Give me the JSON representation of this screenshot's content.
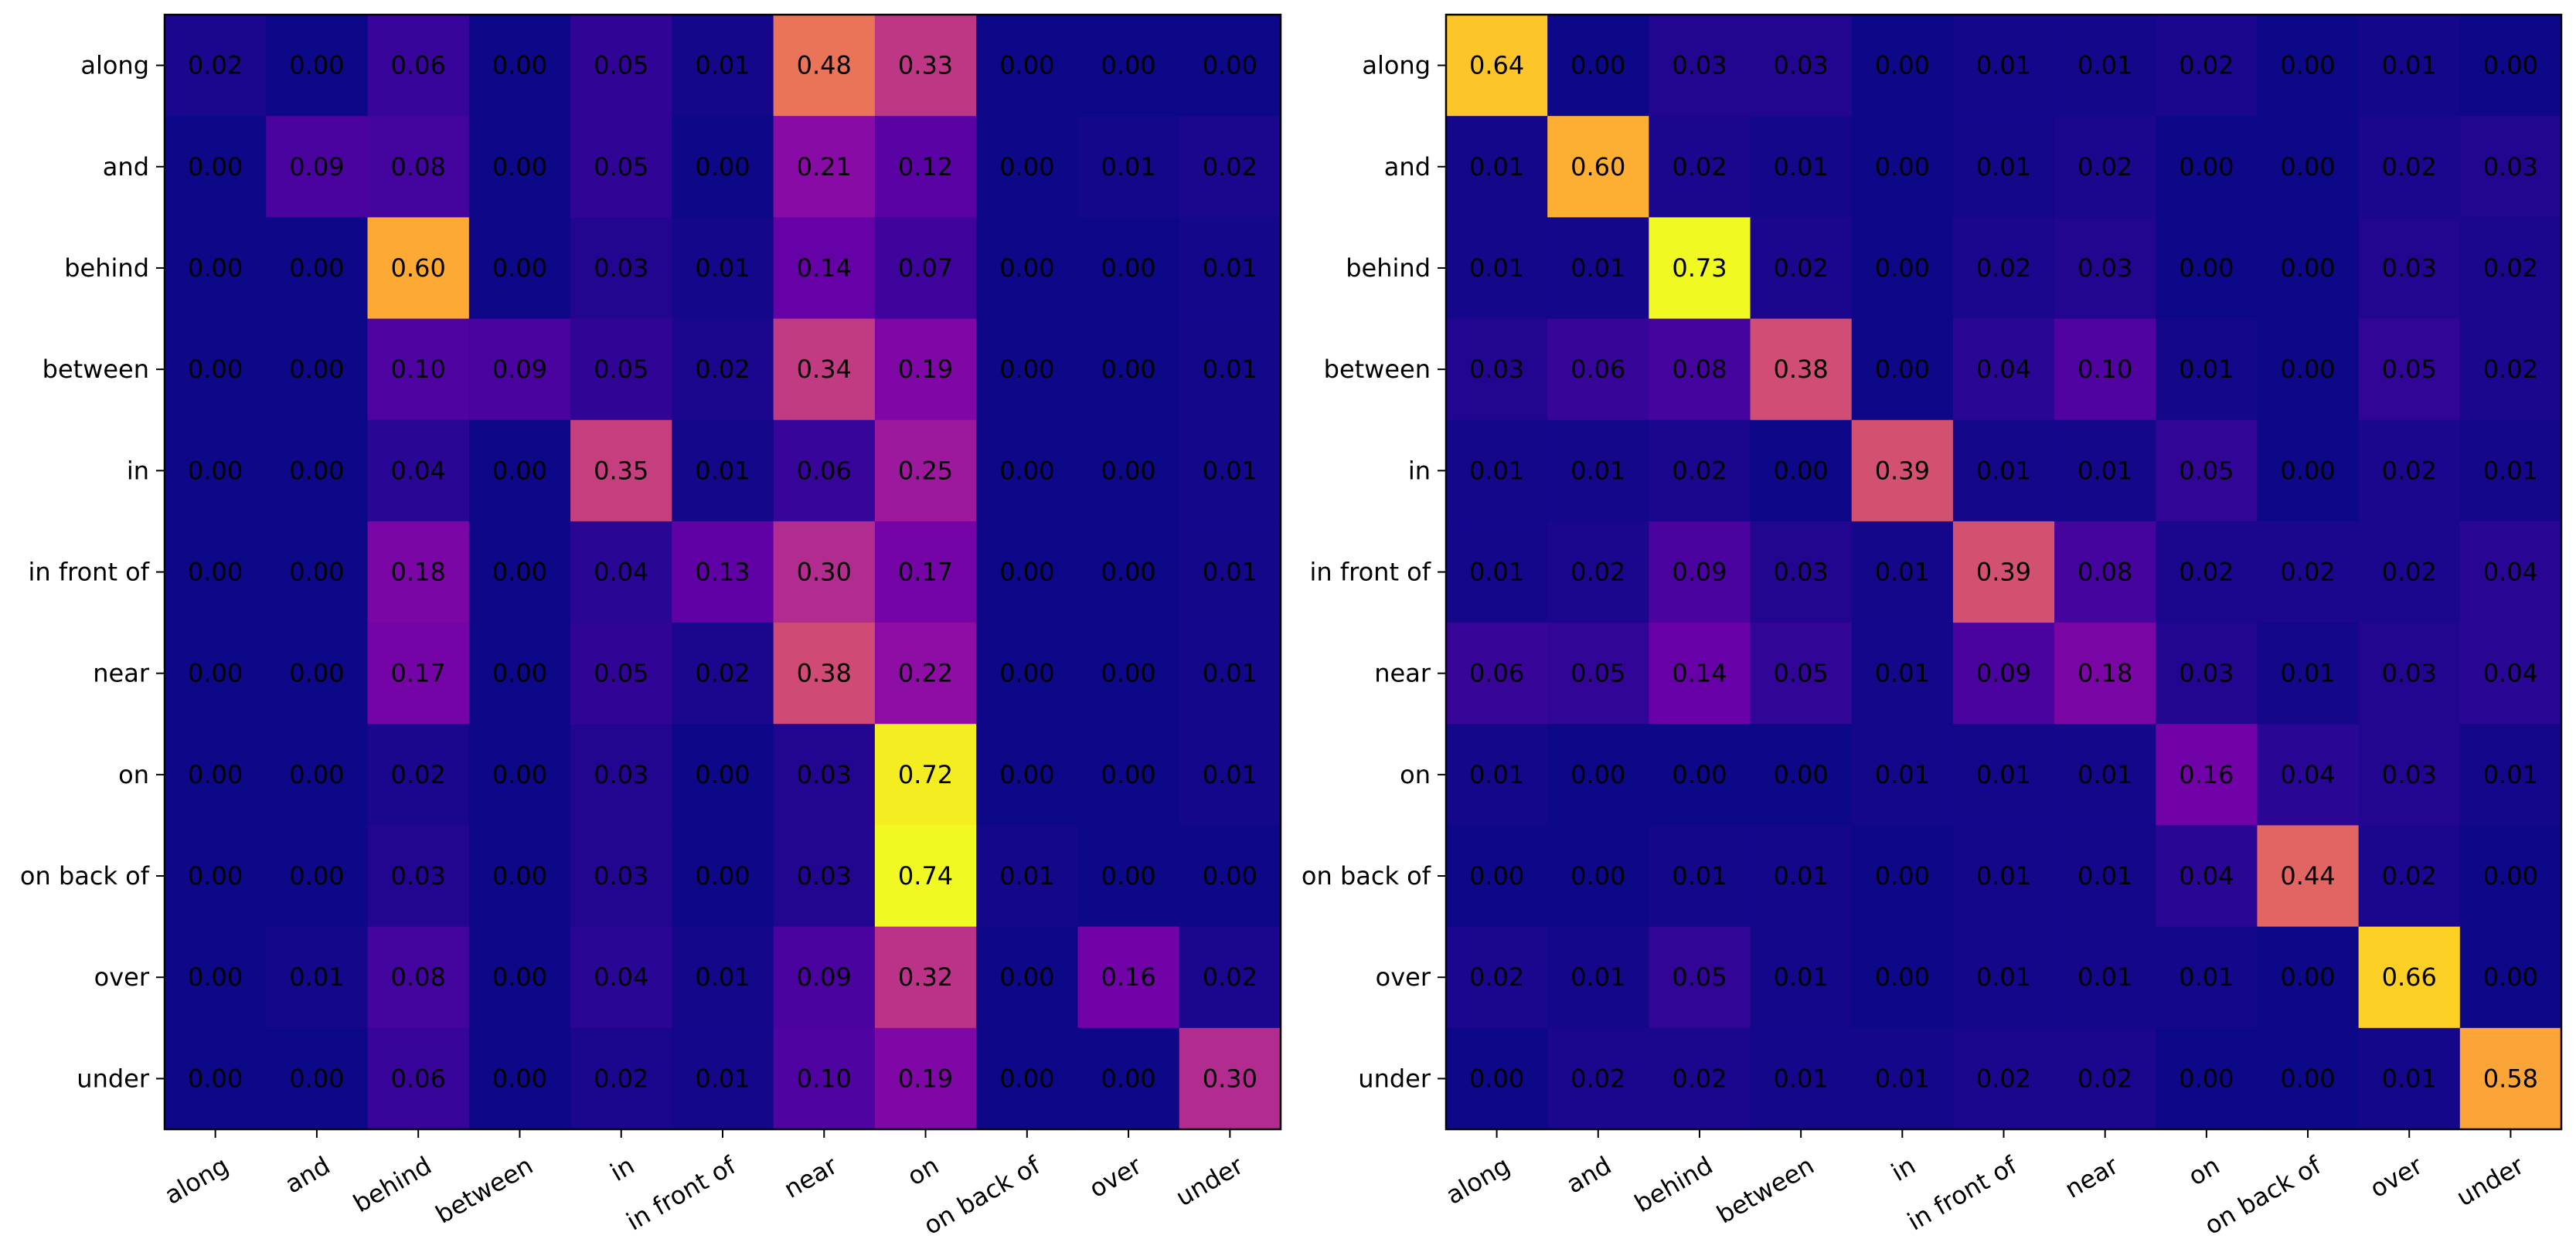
{
  "chart_data": [
    {
      "type": "heatmap",
      "title": "",
      "xlabel": "",
      "ylabel": "",
      "colormap": "plasma",
      "vmin": 0.0,
      "vmax": 0.74,
      "x_labels": [
        "along",
        "and",
        "behind",
        "between",
        "in",
        "in front of",
        "near",
        "on",
        "on back of",
        "over",
        "under"
      ],
      "y_labels": [
        "along",
        "and",
        "behind",
        "between",
        "in",
        "in front of",
        "near",
        "on",
        "on back of",
        "over",
        "under"
      ],
      "values": [
        [
          0.02,
          0.0,
          0.06,
          0.0,
          0.05,
          0.01,
          0.48,
          0.33,
          0.0,
          0.0,
          0.0
        ],
        [
          0.0,
          0.09,
          0.08,
          0.0,
          0.05,
          0.0,
          0.21,
          0.12,
          0.0,
          0.01,
          0.02
        ],
        [
          0.0,
          0.0,
          0.6,
          0.0,
          0.03,
          0.01,
          0.14,
          0.07,
          0.0,
          0.0,
          0.01
        ],
        [
          0.0,
          0.0,
          0.1,
          0.09,
          0.05,
          0.02,
          0.34,
          0.19,
          0.0,
          0.0,
          0.01
        ],
        [
          0.0,
          0.0,
          0.04,
          0.0,
          0.35,
          0.01,
          0.06,
          0.25,
          0.0,
          0.0,
          0.01
        ],
        [
          0.0,
          0.0,
          0.18,
          0.0,
          0.04,
          0.13,
          0.3,
          0.17,
          0.0,
          0.0,
          0.01
        ],
        [
          0.0,
          0.0,
          0.17,
          0.0,
          0.05,
          0.02,
          0.38,
          0.22,
          0.0,
          0.0,
          0.01
        ],
        [
          0.0,
          0.0,
          0.02,
          0.0,
          0.03,
          0.0,
          0.03,
          0.72,
          0.0,
          0.0,
          0.01
        ],
        [
          0.0,
          0.0,
          0.03,
          0.0,
          0.03,
          0.0,
          0.03,
          0.74,
          0.01,
          0.0,
          0.0
        ],
        [
          0.0,
          0.01,
          0.08,
          0.0,
          0.04,
          0.01,
          0.09,
          0.32,
          0.0,
          0.16,
          0.02
        ],
        [
          0.0,
          0.0,
          0.06,
          0.0,
          0.02,
          0.01,
          0.1,
          0.19,
          0.0,
          0.0,
          0.3
        ]
      ]
    },
    {
      "type": "heatmap",
      "title": "",
      "xlabel": "",
      "ylabel": "",
      "colormap": "plasma",
      "vmin": 0.0,
      "vmax": 0.73,
      "x_labels": [
        "along",
        "and",
        "behind",
        "between",
        "in",
        "in front of",
        "near",
        "on",
        "on back of",
        "over",
        "under"
      ],
      "y_labels": [
        "along",
        "and",
        "behind",
        "between",
        "in",
        "in front of",
        "near",
        "on",
        "on back of",
        "over",
        "under"
      ],
      "values": [
        [
          0.64,
          0.0,
          0.03,
          0.03,
          0.0,
          0.01,
          0.01,
          0.02,
          0.0,
          0.01,
          0.0
        ],
        [
          0.01,
          0.6,
          0.02,
          0.01,
          0.0,
          0.01,
          0.02,
          0.0,
          0.0,
          0.02,
          0.03
        ],
        [
          0.01,
          0.01,
          0.73,
          0.02,
          0.0,
          0.02,
          0.03,
          0.0,
          0.0,
          0.03,
          0.02
        ],
        [
          0.03,
          0.06,
          0.08,
          0.38,
          0.0,
          0.04,
          0.1,
          0.01,
          0.0,
          0.05,
          0.02
        ],
        [
          0.01,
          0.01,
          0.02,
          0.0,
          0.39,
          0.01,
          0.01,
          0.05,
          0.0,
          0.02,
          0.01
        ],
        [
          0.01,
          0.02,
          0.09,
          0.03,
          0.01,
          0.39,
          0.08,
          0.02,
          0.02,
          0.02,
          0.04
        ],
        [
          0.06,
          0.05,
          0.14,
          0.05,
          0.01,
          0.09,
          0.18,
          0.03,
          0.01,
          0.03,
          0.04
        ],
        [
          0.01,
          0.0,
          0.0,
          0.0,
          0.01,
          0.01,
          0.01,
          0.16,
          0.04,
          0.03,
          0.01
        ],
        [
          0.0,
          0.0,
          0.01,
          0.01,
          0.0,
          0.01,
          0.01,
          0.04,
          0.44,
          0.02,
          0.0
        ],
        [
          0.02,
          0.01,
          0.05,
          0.01,
          0.0,
          0.01,
          0.01,
          0.01,
          0.0,
          0.66,
          0.0
        ],
        [
          0.0,
          0.02,
          0.02,
          0.01,
          0.01,
          0.02,
          0.02,
          0.0,
          0.0,
          0.01,
          0.58
        ]
      ]
    }
  ]
}
